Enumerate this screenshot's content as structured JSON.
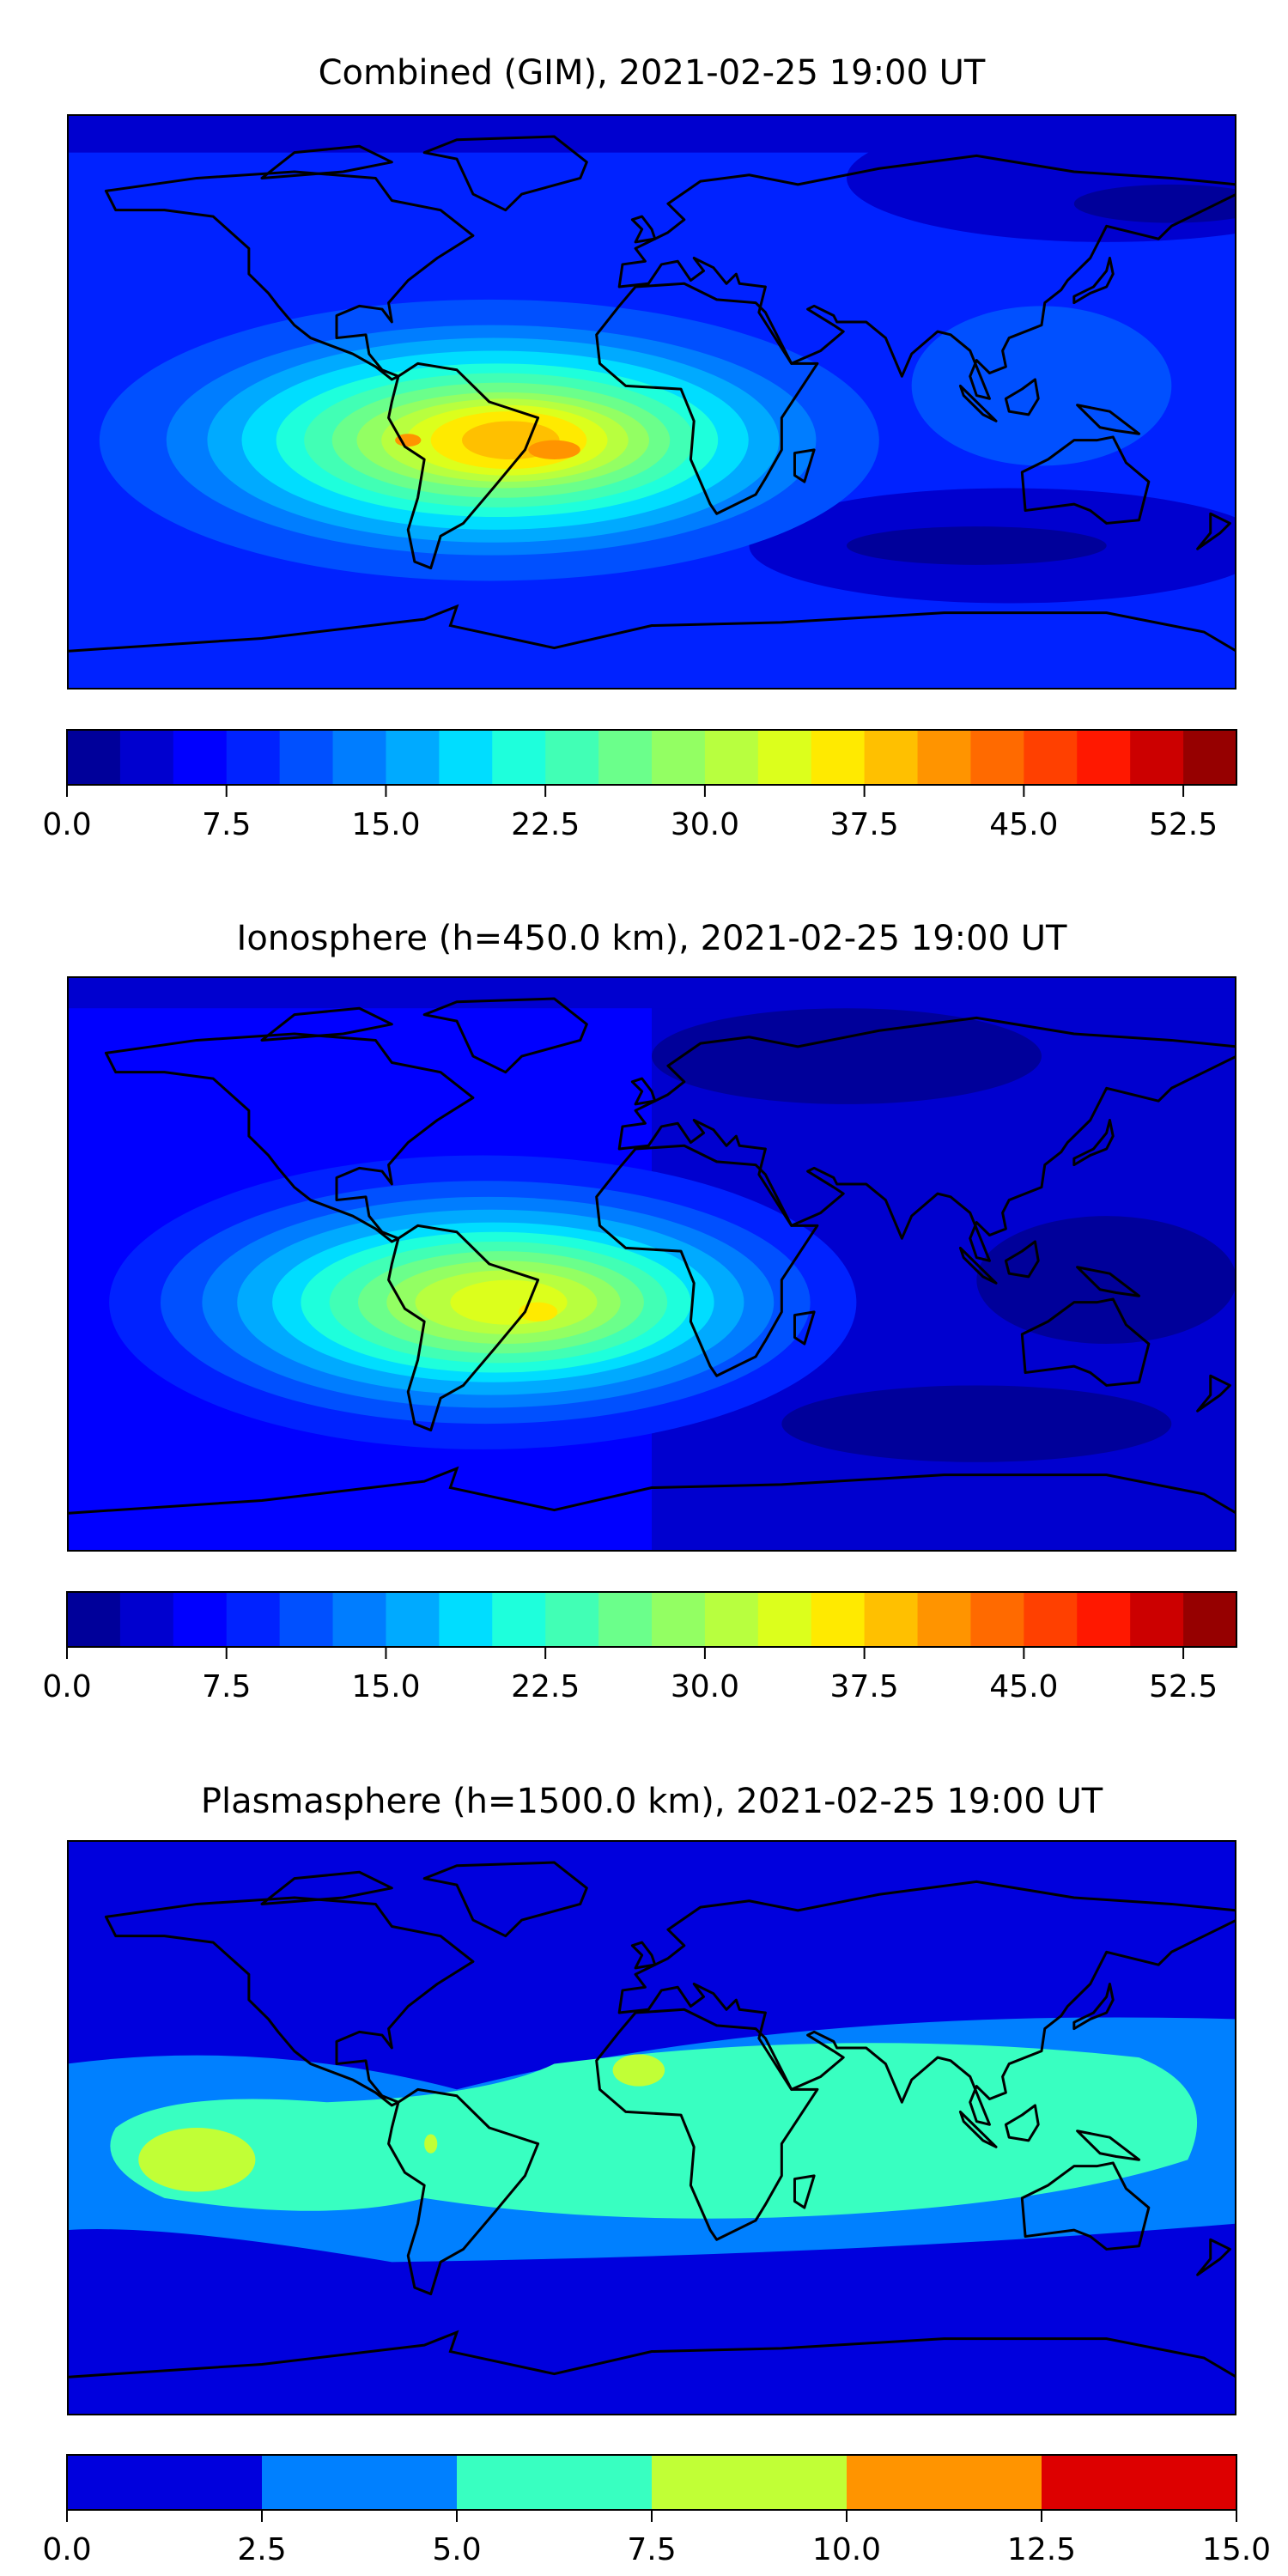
{
  "chart_data": [
    {
      "type": "heatmap",
      "title": "Combined (GIM), 2021-02-25 19:00 UT",
      "projection": "equirectangular world map with coastlines",
      "xlim": [
        -180,
        180
      ],
      "ylim": [
        -90,
        90
      ],
      "levels": [
        0,
        2.5,
        5,
        7.5,
        10,
        12.5,
        15,
        17.5,
        20,
        22.5,
        25,
        27.5,
        30,
        32.5,
        35,
        37.5,
        40,
        42.5,
        45,
        47.5,
        50,
        52.5,
        55
      ],
      "colors": [
        "#00009a",
        "#0000cf",
        "#0000ff",
        "#0022ff",
        "#0050ff",
        "#007dff",
        "#00aaff",
        "#00ddff",
        "#1effdc",
        "#41ffb5",
        "#6bff8b",
        "#93ff63",
        "#b8ff3f",
        "#dcff1c",
        "#ffea00",
        "#ffc000",
        "#ff9400",
        "#ff6a00",
        "#ff4000",
        "#ff1800",
        "#cc0000",
        "#960000"
      ],
      "colorbar_ticks": [
        "0.0",
        "7.5",
        "15.0",
        "22.5",
        "30.0",
        "37.5",
        "45.0",
        "52.5"
      ],
      "peak_region": {
        "lon": -45,
        "lat": -12,
        "approx_max": 42
      }
    },
    {
      "type": "heatmap",
      "title": "Ionosphere  (h=450.0 km), 2021-02-25 19:00 UT",
      "projection": "equirectangular world map with coastlines",
      "xlim": [
        -180,
        180
      ],
      "ylim": [
        -90,
        90
      ],
      "levels": [
        0,
        2.5,
        5,
        7.5,
        10,
        12.5,
        15,
        17.5,
        20,
        22.5,
        25,
        27.5,
        30,
        32.5,
        35,
        37.5,
        40,
        42.5,
        45,
        47.5,
        50,
        52.5,
        55
      ],
      "colors": [
        "#00009a",
        "#0000cf",
        "#0000ff",
        "#0022ff",
        "#0050ff",
        "#007dff",
        "#00aaff",
        "#00ddff",
        "#1effdc",
        "#41ffb5",
        "#6bff8b",
        "#93ff63",
        "#b8ff3f",
        "#dcff1c",
        "#ffea00",
        "#ffc000",
        "#ff9400",
        "#ff6a00",
        "#ff4000",
        "#ff1800",
        "#cc0000",
        "#960000"
      ],
      "colorbar_ticks": [
        "0.0",
        "7.5",
        "15.0",
        "22.5",
        "30.0",
        "37.5",
        "45.0",
        "52.5"
      ],
      "peak_region": {
        "lon": -40,
        "lat": -12,
        "approx_max": 37
      }
    },
    {
      "type": "heatmap",
      "title": "Plasmasphere (h=1500.0 km), 2021-02-25 19:00 UT",
      "projection": "equirectangular world map with coastlines",
      "xlim": [
        -180,
        180
      ],
      "ylim": [
        -90,
        90
      ],
      "levels": [
        0,
        2.5,
        5,
        7.5,
        10,
        12.5,
        15
      ],
      "colors": [
        "#0000dd",
        "#0080ff",
        "#38ffc1",
        "#c1ff36",
        "#ff9400",
        "#dd0000"
      ],
      "colorbar_ticks": [
        "0.0",
        "2.5",
        "5.0",
        "7.5",
        "10.0",
        "12.5",
        "15.0"
      ],
      "peak_region": {
        "lon": -140,
        "lat": -10,
        "approx_max": 9
      }
    }
  ]
}
